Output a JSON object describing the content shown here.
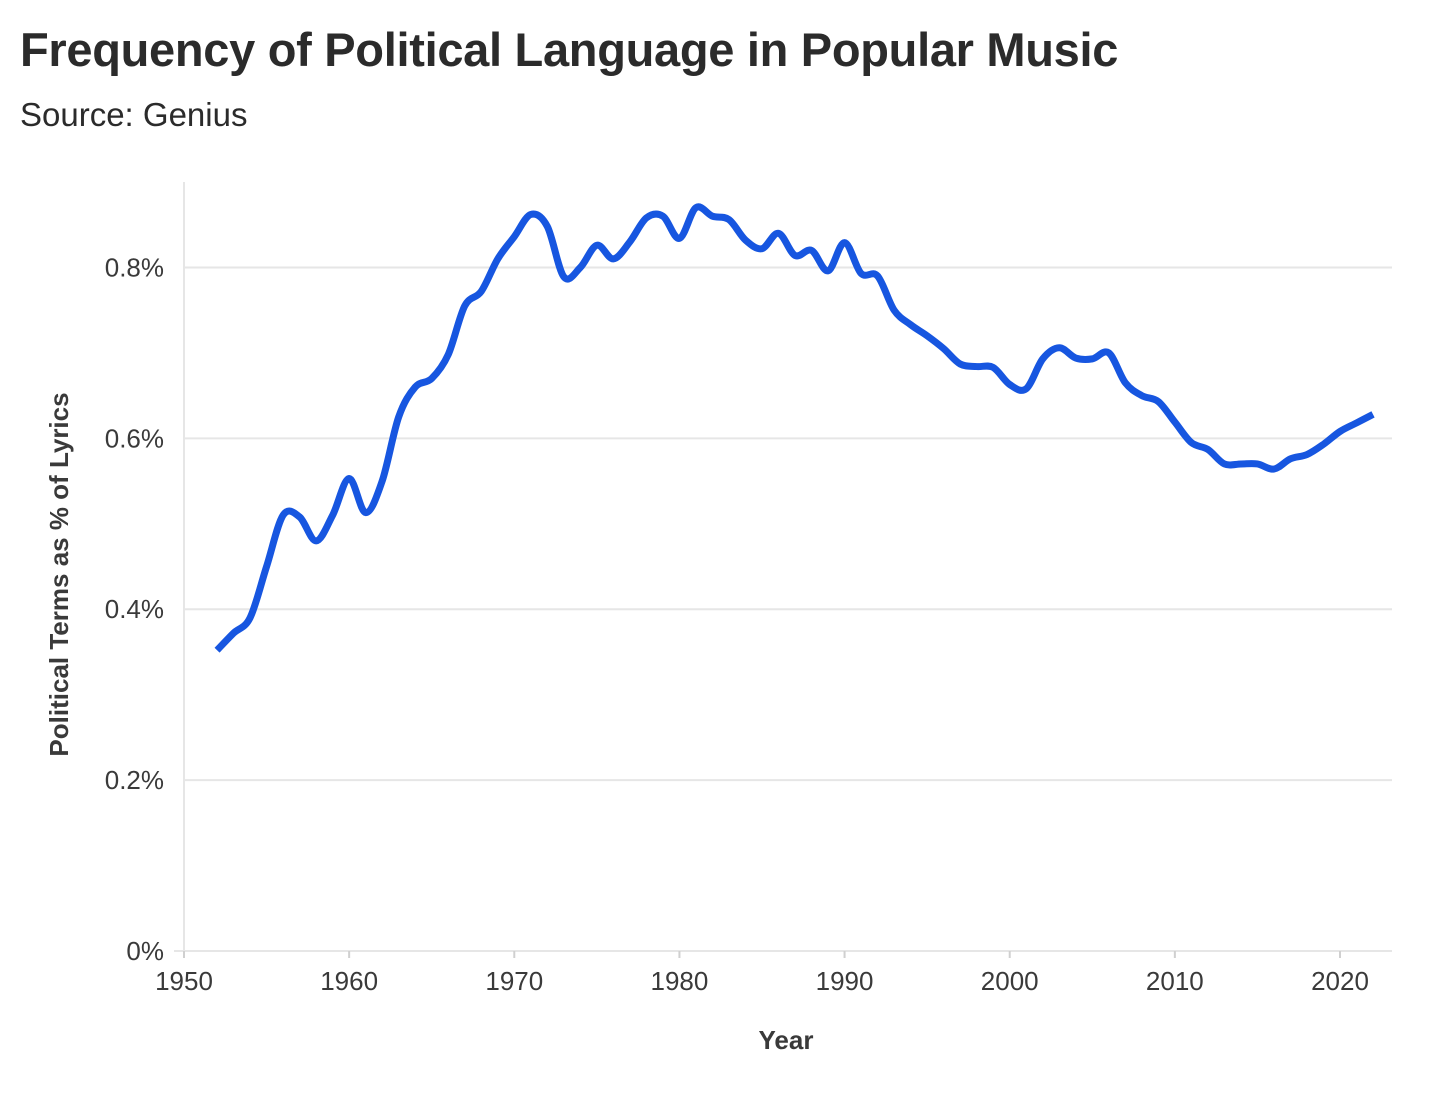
{
  "title": "Frequency of Political Language in Popular Music",
  "subtitle": "Source: Genius",
  "colors": {
    "line": "#1756e0",
    "grid": "#e6e6e6",
    "text": "#2b2b2b"
  },
  "chart_data": {
    "type": "line",
    "title": "Frequency of Political Language in Popular Music",
    "subtitle": "Source: Genius",
    "xlabel": "Year",
    "ylabel": "Political Terms as % of Lyrics",
    "xlim": [
      1950,
      2023
    ],
    "ylim": [
      0,
      0.9
    ],
    "x_ticks": [
      1950,
      1960,
      1970,
      1980,
      1990,
      2000,
      2010,
      2020
    ],
    "x_tick_labels": [
      "1950",
      "1960",
      "1970",
      "1980",
      "1990",
      "2000",
      "2010",
      "2020"
    ],
    "y_ticks": [
      0,
      0.2,
      0.4,
      0.6,
      0.8
    ],
    "y_tick_labels": [
      "0%",
      "0.2%",
      "0.4%",
      "0.6%",
      "0.8%"
    ],
    "grid": true,
    "legend": "none",
    "series": [
      {
        "x": [
          1952,
          1953,
          1954,
          1955,
          1956,
          1957,
          1958,
          1959,
          1960,
          1961,
          1962,
          1963,
          1964,
          1965,
          1966,
          1967,
          1968,
          1969,
          1970,
          1971,
          1972,
          1973,
          1974,
          1975,
          1976,
          1977,
          1978,
          1979,
          1980,
          1981,
          1982,
          1983,
          1984,
          1985,
          1986,
          1987,
          1988,
          1989,
          1990,
          1991,
          1992,
          1993,
          1994,
          1995,
          1996,
          1997,
          1998,
          1999,
          2000,
          2001,
          2002,
          2003,
          2004,
          2005,
          2006,
          2007,
          2008,
          2009,
          2010,
          2011,
          2012,
          2013,
          2014,
          2015,
          2016,
          2017,
          2018,
          2019,
          2020,
          2021,
          2022
        ],
        "values": [
          0.352,
          0.372,
          0.39,
          0.45,
          0.51,
          0.508,
          0.48,
          0.51,
          0.553,
          0.513,
          0.55,
          0.625,
          0.66,
          0.67,
          0.698,
          0.755,
          0.772,
          0.81,
          0.836,
          0.862,
          0.848,
          0.789,
          0.8,
          0.826,
          0.81,
          0.83,
          0.858,
          0.86,
          0.834,
          0.87,
          0.86,
          0.856,
          0.832,
          0.822,
          0.84,
          0.814,
          0.82,
          0.796,
          0.829,
          0.793,
          0.79,
          0.75,
          0.733,
          0.72,
          0.705,
          0.687,
          0.684,
          0.683,
          0.663,
          0.658,
          0.693,
          0.706,
          0.694,
          0.693,
          0.7,
          0.665,
          0.65,
          0.643,
          0.619,
          0.595,
          0.587,
          0.57,
          0.57,
          0.57,
          0.564,
          0.576,
          0.581,
          0.593,
          0.608,
          0.618,
          0.628
        ]
      }
    ]
  }
}
